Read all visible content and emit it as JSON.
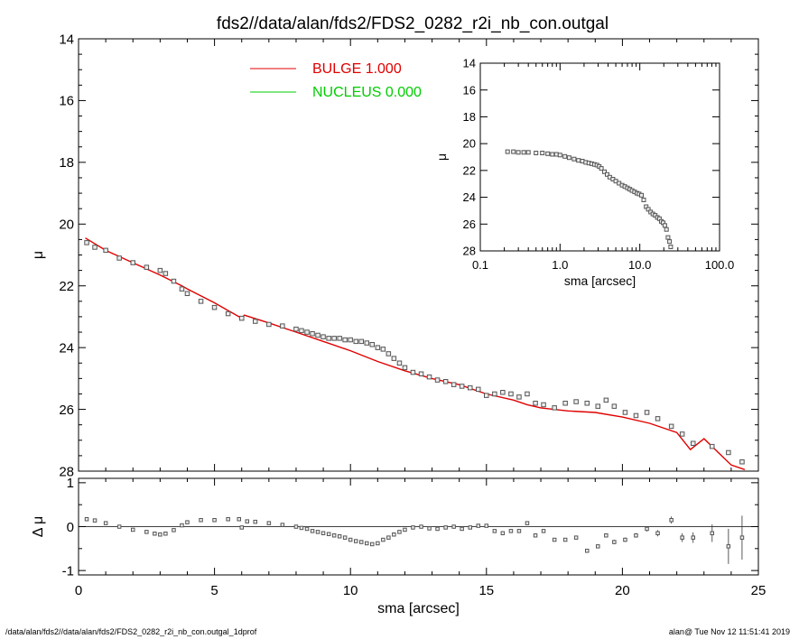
{
  "title": "fds2//data/alan/fds2/FDS2_0282_r2i_nb_con.outgal",
  "footer_left": "/data/alan/fds2//data/alan/fds2/FDS2_0282_r2i_nb_con.outgal_1dprof",
  "footer_right": "alan@  Tue Nov 12 11:51:41 2019",
  "colors": {
    "bulge": "#e00000",
    "nucleus": "#00cc00",
    "data": "#555555",
    "axis": "#000000"
  },
  "chart_data": [
    {
      "id": "main-profile",
      "type": "scatter",
      "xlabel": "",
      "ylabel": "μ",
      "xlim": [
        0,
        25
      ],
      "ylim": [
        28,
        14
      ],
      "y_inverted": true,
      "xticks": [
        0,
        5,
        10,
        15,
        20,
        25
      ],
      "yticks": [
        14,
        16,
        18,
        20,
        22,
        24,
        26,
        28
      ],
      "legend_position": "top-center",
      "legend": [
        {
          "label": "BULGE  1.000",
          "color": "#e00000"
        },
        {
          "label": "NUCLEUS  0.000",
          "color": "#00cc00"
        }
      ],
      "series": [
        {
          "name": "BULGE  1.000",
          "kind": "line",
          "x": [
            0.25,
            1.0,
            2.0,
            3.0,
            3.8,
            4.0,
            5.0,
            6.0,
            6.1,
            7.0,
            8.0,
            9.0,
            10.0,
            11.0,
            12.0,
            13.0,
            14.0,
            15.0,
            16.0,
            16.5,
            17.0,
            18.0,
            19.0,
            20.0,
            21.0,
            22.0,
            22.5,
            23.0,
            24.0,
            24.5
          ],
          "y": [
            20.45,
            20.85,
            21.25,
            21.65,
            22.0,
            22.1,
            22.55,
            23.05,
            22.95,
            23.2,
            23.5,
            23.8,
            24.1,
            24.45,
            24.75,
            25.0,
            25.2,
            25.5,
            25.7,
            25.85,
            25.95,
            26.05,
            26.1,
            26.25,
            26.45,
            26.75,
            27.3,
            26.95,
            27.8,
            27.95
          ]
        },
        {
          "name": "data",
          "kind": "points",
          "x": [
            0.3,
            0.6,
            1.0,
            1.5,
            2.0,
            2.5,
            3.0,
            3.2,
            3.5,
            3.8,
            4.0,
            4.5,
            5.0,
            5.5,
            6.0,
            6.5,
            7.0,
            7.5,
            8.0,
            8.2,
            8.4,
            8.6,
            8.8,
            9.0,
            9.2,
            9.4,
            9.6,
            9.8,
            10.0,
            10.2,
            10.4,
            10.6,
            10.8,
            11.0,
            11.2,
            11.4,
            11.6,
            11.8,
            12.0,
            12.3,
            12.6,
            12.9,
            13.2,
            13.5,
            13.8,
            14.1,
            14.4,
            14.7,
            15.0,
            15.3,
            15.6,
            15.9,
            16.2,
            16.5,
            16.8,
            17.1,
            17.5,
            17.9,
            18.3,
            18.7,
            19.1,
            19.4,
            19.7,
            20.1,
            20.5,
            20.9,
            21.3,
            21.8,
            22.2,
            22.6,
            23.3,
            23.9,
            24.4
          ],
          "y": [
            20.6,
            20.75,
            20.85,
            21.1,
            21.25,
            21.4,
            21.5,
            21.6,
            21.85,
            22.1,
            22.25,
            22.5,
            22.7,
            22.9,
            23.05,
            23.15,
            23.25,
            23.3,
            23.4,
            23.45,
            23.5,
            23.55,
            23.6,
            23.65,
            23.7,
            23.7,
            23.7,
            23.75,
            23.75,
            23.8,
            23.8,
            23.85,
            23.9,
            24.0,
            24.05,
            24.2,
            24.35,
            24.5,
            24.65,
            24.8,
            24.85,
            24.95,
            25.05,
            25.1,
            25.2,
            25.25,
            25.3,
            25.35,
            25.55,
            25.5,
            25.45,
            25.5,
            25.6,
            25.5,
            25.8,
            25.85,
            25.95,
            25.8,
            25.75,
            25.8,
            25.9,
            25.7,
            25.9,
            26.1,
            26.2,
            26.1,
            26.3,
            26.55,
            26.8,
            27.1,
            27.2,
            27.4,
            27.7
          ]
        }
      ]
    },
    {
      "id": "inset-profile",
      "type": "scatter",
      "xlabel": "sma [arcsec]",
      "ylabel": "μ",
      "x_scale": "log",
      "xlim": [
        0.1,
        100
      ],
      "ylim": [
        28,
        14
      ],
      "y_inverted": true,
      "xticks": [
        0.1,
        1.0,
        10.0,
        100.0
      ],
      "xtick_labels": [
        "0.1",
        "1.0",
        "10.0",
        "100.0"
      ],
      "yticks": [
        14,
        16,
        18,
        20,
        22,
        24,
        26,
        28
      ],
      "series": [
        {
          "name": "data",
          "kind": "points",
          "x": [
            0.22,
            0.26,
            0.3,
            0.35,
            0.4,
            0.5,
            0.6,
            0.7,
            0.8,
            0.9,
            1.0,
            1.15,
            1.3,
            1.5,
            1.7,
            1.9,
            2.1,
            2.3,
            2.5,
            2.7,
            2.9,
            3.1,
            3.3,
            3.6,
            3.9,
            4.2,
            4.6,
            5.0,
            5.5,
            6.0,
            6.5,
            7.0,
            7.5,
            8.0,
            8.6,
            9.2,
            9.8,
            10.5,
            11.2,
            12.0,
            12.8,
            13.7,
            14.6,
            15.6,
            16.6,
            17.6,
            18.6,
            19.6,
            20.6,
            21.6,
            22.6,
            23.6,
            24.4
          ],
          "y": [
            20.6,
            20.6,
            20.65,
            20.65,
            20.65,
            20.7,
            20.7,
            20.75,
            20.8,
            20.8,
            20.85,
            20.95,
            21.05,
            21.15,
            21.25,
            21.3,
            21.4,
            21.45,
            21.5,
            21.55,
            21.6,
            21.7,
            21.85,
            22.1,
            22.3,
            22.5,
            22.65,
            22.8,
            22.95,
            23.1,
            23.2,
            23.3,
            23.4,
            23.5,
            23.6,
            23.7,
            23.75,
            23.85,
            24.2,
            24.7,
            24.9,
            25.1,
            25.25,
            25.35,
            25.5,
            25.6,
            25.8,
            25.9,
            26.1,
            26.4,
            27.0,
            27.3,
            27.7
          ]
        }
      ]
    },
    {
      "id": "residuals",
      "type": "scatter",
      "xlabel": "sma [arcsec]",
      "ylabel": "Δ μ",
      "xlim": [
        0,
        25
      ],
      "ylim": [
        -1.1,
        1.1
      ],
      "xticks": [
        0,
        5,
        10,
        15,
        20,
        25
      ],
      "yticks": [
        -1,
        0,
        1
      ],
      "zero_line": true,
      "series": [
        {
          "name": "residual",
          "kind": "points_with_errors",
          "x": [
            0.3,
            0.6,
            1.0,
            1.5,
            2.0,
            2.5,
            2.8,
            3.0,
            3.2,
            3.5,
            3.8,
            4.0,
            4.5,
            5.0,
            5.5,
            5.9,
            6.0,
            6.2,
            6.5,
            7.0,
            7.5,
            8.0,
            8.2,
            8.4,
            8.6,
            8.8,
            9.0,
            9.2,
            9.4,
            9.6,
            9.8,
            10.0,
            10.2,
            10.4,
            10.6,
            10.8,
            11.0,
            11.2,
            11.4,
            11.6,
            11.8,
            12.0,
            12.3,
            12.6,
            12.9,
            13.2,
            13.5,
            13.8,
            14.1,
            14.4,
            14.7,
            15.0,
            15.3,
            15.6,
            15.9,
            16.2,
            16.5,
            16.8,
            17.1,
            17.5,
            17.9,
            18.3,
            18.7,
            19.1,
            19.4,
            19.7,
            20.1,
            20.5,
            20.9,
            21.3,
            21.8,
            22.2,
            22.6,
            23.3,
            23.9,
            24.4
          ],
          "y": [
            0.17,
            0.14,
            0.08,
            0.0,
            -0.07,
            -0.12,
            -0.16,
            -0.18,
            -0.16,
            -0.08,
            0.03,
            0.1,
            0.15,
            0.15,
            0.17,
            0.17,
            -0.02,
            0.12,
            0.11,
            0.08,
            0.04,
            0.0,
            -0.03,
            -0.05,
            -0.1,
            -0.12,
            -0.15,
            -0.17,
            -0.2,
            -0.22,
            -0.25,
            -0.3,
            -0.33,
            -0.35,
            -0.38,
            -0.4,
            -0.38,
            -0.3,
            -0.25,
            -0.18,
            -0.12,
            -0.07,
            -0.02,
            0.0,
            -0.04,
            -0.05,
            -0.02,
            0.0,
            -0.05,
            -0.02,
            0.02,
            0.02,
            -0.1,
            -0.15,
            -0.1,
            -0.1,
            0.08,
            -0.2,
            -0.1,
            -0.3,
            -0.3,
            -0.25,
            -0.55,
            -0.45,
            -0.2,
            -0.35,
            -0.3,
            -0.2,
            -0.05,
            -0.15,
            0.15,
            -0.25,
            -0.25,
            -0.15,
            -0.45,
            -0.25
          ],
          "err": [
            0.01,
            0.01,
            0.01,
            0.01,
            0.01,
            0.01,
            0.01,
            0.01,
            0.01,
            0.01,
            0.01,
            0.01,
            0.01,
            0.01,
            0.01,
            0.01,
            0.01,
            0.01,
            0.01,
            0.01,
            0.01,
            0.01,
            0.01,
            0.01,
            0.01,
            0.01,
            0.01,
            0.01,
            0.01,
            0.01,
            0.01,
            0.01,
            0.01,
            0.01,
            0.01,
            0.01,
            0.01,
            0.01,
            0.01,
            0.01,
            0.01,
            0.01,
            0.01,
            0.01,
            0.01,
            0.01,
            0.01,
            0.01,
            0.01,
            0.01,
            0.01,
            0.01,
            0.01,
            0.01,
            0.01,
            0.01,
            0.02,
            0.02,
            0.02,
            0.02,
            0.03,
            0.03,
            0.04,
            0.04,
            0.04,
            0.05,
            0.05,
            0.05,
            0.06,
            0.07,
            0.08,
            0.1,
            0.12,
            0.2,
            0.4,
            0.5
          ]
        }
      ]
    }
  ]
}
